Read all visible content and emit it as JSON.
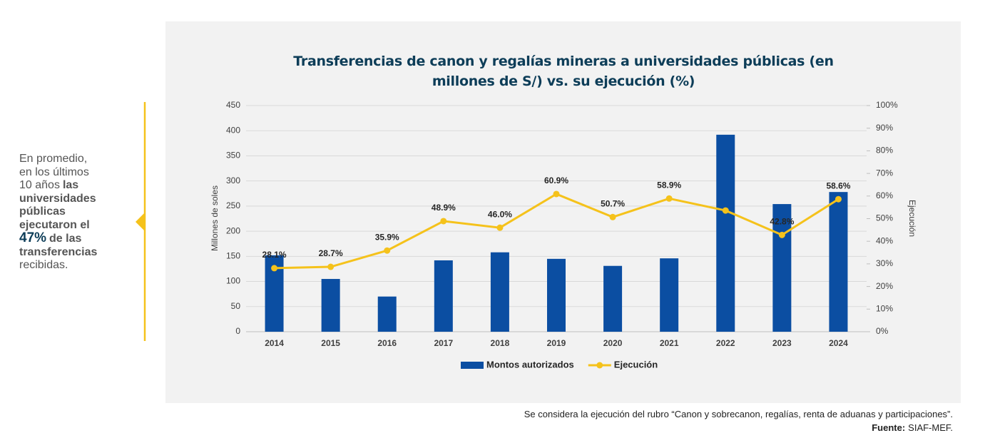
{
  "chart_data": {
    "type": "bar_line",
    "title": "Transferencias de canon y regalías mineras a universidades públicas (en millones de S/) vs. su ejecución (%)",
    "y_label": "Millones de soles",
    "y2_label": "Ejecución",
    "categories": [
      "2014",
      "2015",
      "2016",
      "2017",
      "2018",
      "2019",
      "2020",
      "2021",
      "2022",
      "2023",
      "2024"
    ],
    "series": [
      {
        "name": "Montos autorizados",
        "type": "bar",
        "color": "#0b4ea2",
        "values": [
          152,
          105,
          70,
          142,
          158,
          145,
          131,
          146,
          392,
          254,
          278
        ]
      },
      {
        "name": "Ejecución",
        "type": "line",
        "axis": "y2",
        "color": "#f5c21b",
        "values": [
          28.1,
          28.7,
          35.9,
          48.9,
          46.0,
          60.9,
          50.7,
          58.9,
          53.6,
          42.8,
          58.6
        ],
        "value_labels": [
          "28.1%",
          "28.7%",
          "35.9%",
          "48.9%",
          "46.0%",
          "60.9%",
          "50.7%",
          "58.9%",
          null,
          "42.8%",
          "58.6%"
        ]
      }
    ],
    "ylim": [
      0,
      450
    ],
    "yticks": [
      0,
      50,
      100,
      150,
      200,
      250,
      300,
      350,
      400,
      450
    ],
    "y2lim": [
      0,
      100
    ],
    "y2ticks": [
      {
        "value": 0,
        "label": "0%"
      },
      {
        "value": 10,
        "label": "10%"
      },
      {
        "value": 20,
        "label": "20%"
      },
      {
        "value": 30,
        "label": "30%"
      },
      {
        "value": 40,
        "label": "40%"
      },
      {
        "value": 50,
        "label": "50%"
      },
      {
        "value": 60,
        "label": "60%"
      },
      {
        "value": 70,
        "label": "70%"
      },
      {
        "value": 80,
        "label": "80%"
      },
      {
        "value": 90,
        "label": "90%"
      },
      {
        "value": 100,
        "label": "100%"
      }
    ],
    "grid": true,
    "legend": "bottom"
  },
  "sidebar": {
    "lines": [
      [
        "En promedio,"
      ],
      [
        "en los últimos"
      ],
      [
        "10 años",
        "las"
      ],
      [
        "universidades"
      ],
      [
        "públicas"
      ],
      [
        "ejecutaron el"
      ],
      [
        "47%",
        "de las"
      ],
      [
        "transferencias"
      ],
      [
        "recibidas."
      ]
    ]
  },
  "footnote": {
    "note": "Se considera la ejecución del rubro “Canon y sobrecanon, regalías, renta de aduanas y participaciones”.",
    "source_label": "Fuente:",
    "source": "SIAF-MEF."
  }
}
